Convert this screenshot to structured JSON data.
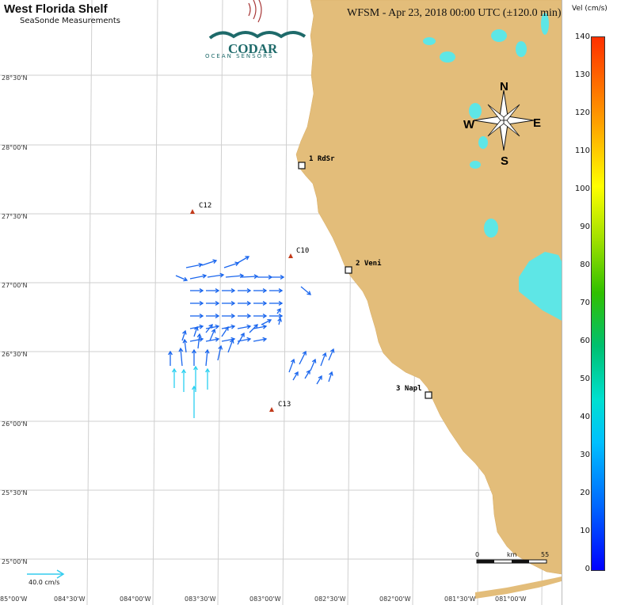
{
  "header": {
    "title": "West Florida Shelf",
    "subtitle": "SeaSonde Measurements",
    "timestamp": "WFSM - Apr 23, 2018 00:00 UTC (±120.0 min)"
  },
  "logo": {
    "text": "CODAR",
    "tagline": "OCEAN SENSORS"
  },
  "colorbar": {
    "title": "Vel (cm/s)",
    "ticks": [
      "140",
      "130",
      "120",
      "110",
      "100",
      "90",
      "80",
      "70",
      "60",
      "50",
      "40",
      "30",
      "20",
      "10",
      "0"
    ]
  },
  "lat_labels": [
    "28°30'N",
    "28°00'N",
    "27°30'N",
    "27°00'N",
    "26°30'N",
    "26°00'N",
    "25°30'N",
    "25°00'N"
  ],
  "lon_labels": [
    "85°00'W",
    "084°30'W",
    "084°00'W",
    "083°30'W",
    "083°00'W",
    "082°30'W",
    "082°00'W",
    "081°30'W",
    "081°00'W"
  ],
  "sites": [
    {
      "id": "site-rdsr",
      "label": "1 RdSr"
    },
    {
      "id": "site-veni",
      "label": "2 Veni"
    },
    {
      "id": "site-napl",
      "label": "3 Napl"
    }
  ],
  "buoys": [
    {
      "id": "buoy-c12",
      "label": "C12"
    },
    {
      "id": "buoy-c10",
      "label": "C10"
    },
    {
      "id": "buoy-c13",
      "label": "C13"
    }
  ],
  "compass": {
    "n": "N",
    "s": "S",
    "e": "E",
    "w": "W"
  },
  "scale_bar": {
    "start": "0",
    "unit": "km",
    "end": "55"
  },
  "vector_legend": {
    "label": "40.0 cm/s"
  },
  "colors": {
    "land": "#e3bd7a",
    "lake": "#5ee6e6",
    "vector": "#1a66ee",
    "strong_vector": "#2ad0f0",
    "grid": "#cccccc"
  }
}
